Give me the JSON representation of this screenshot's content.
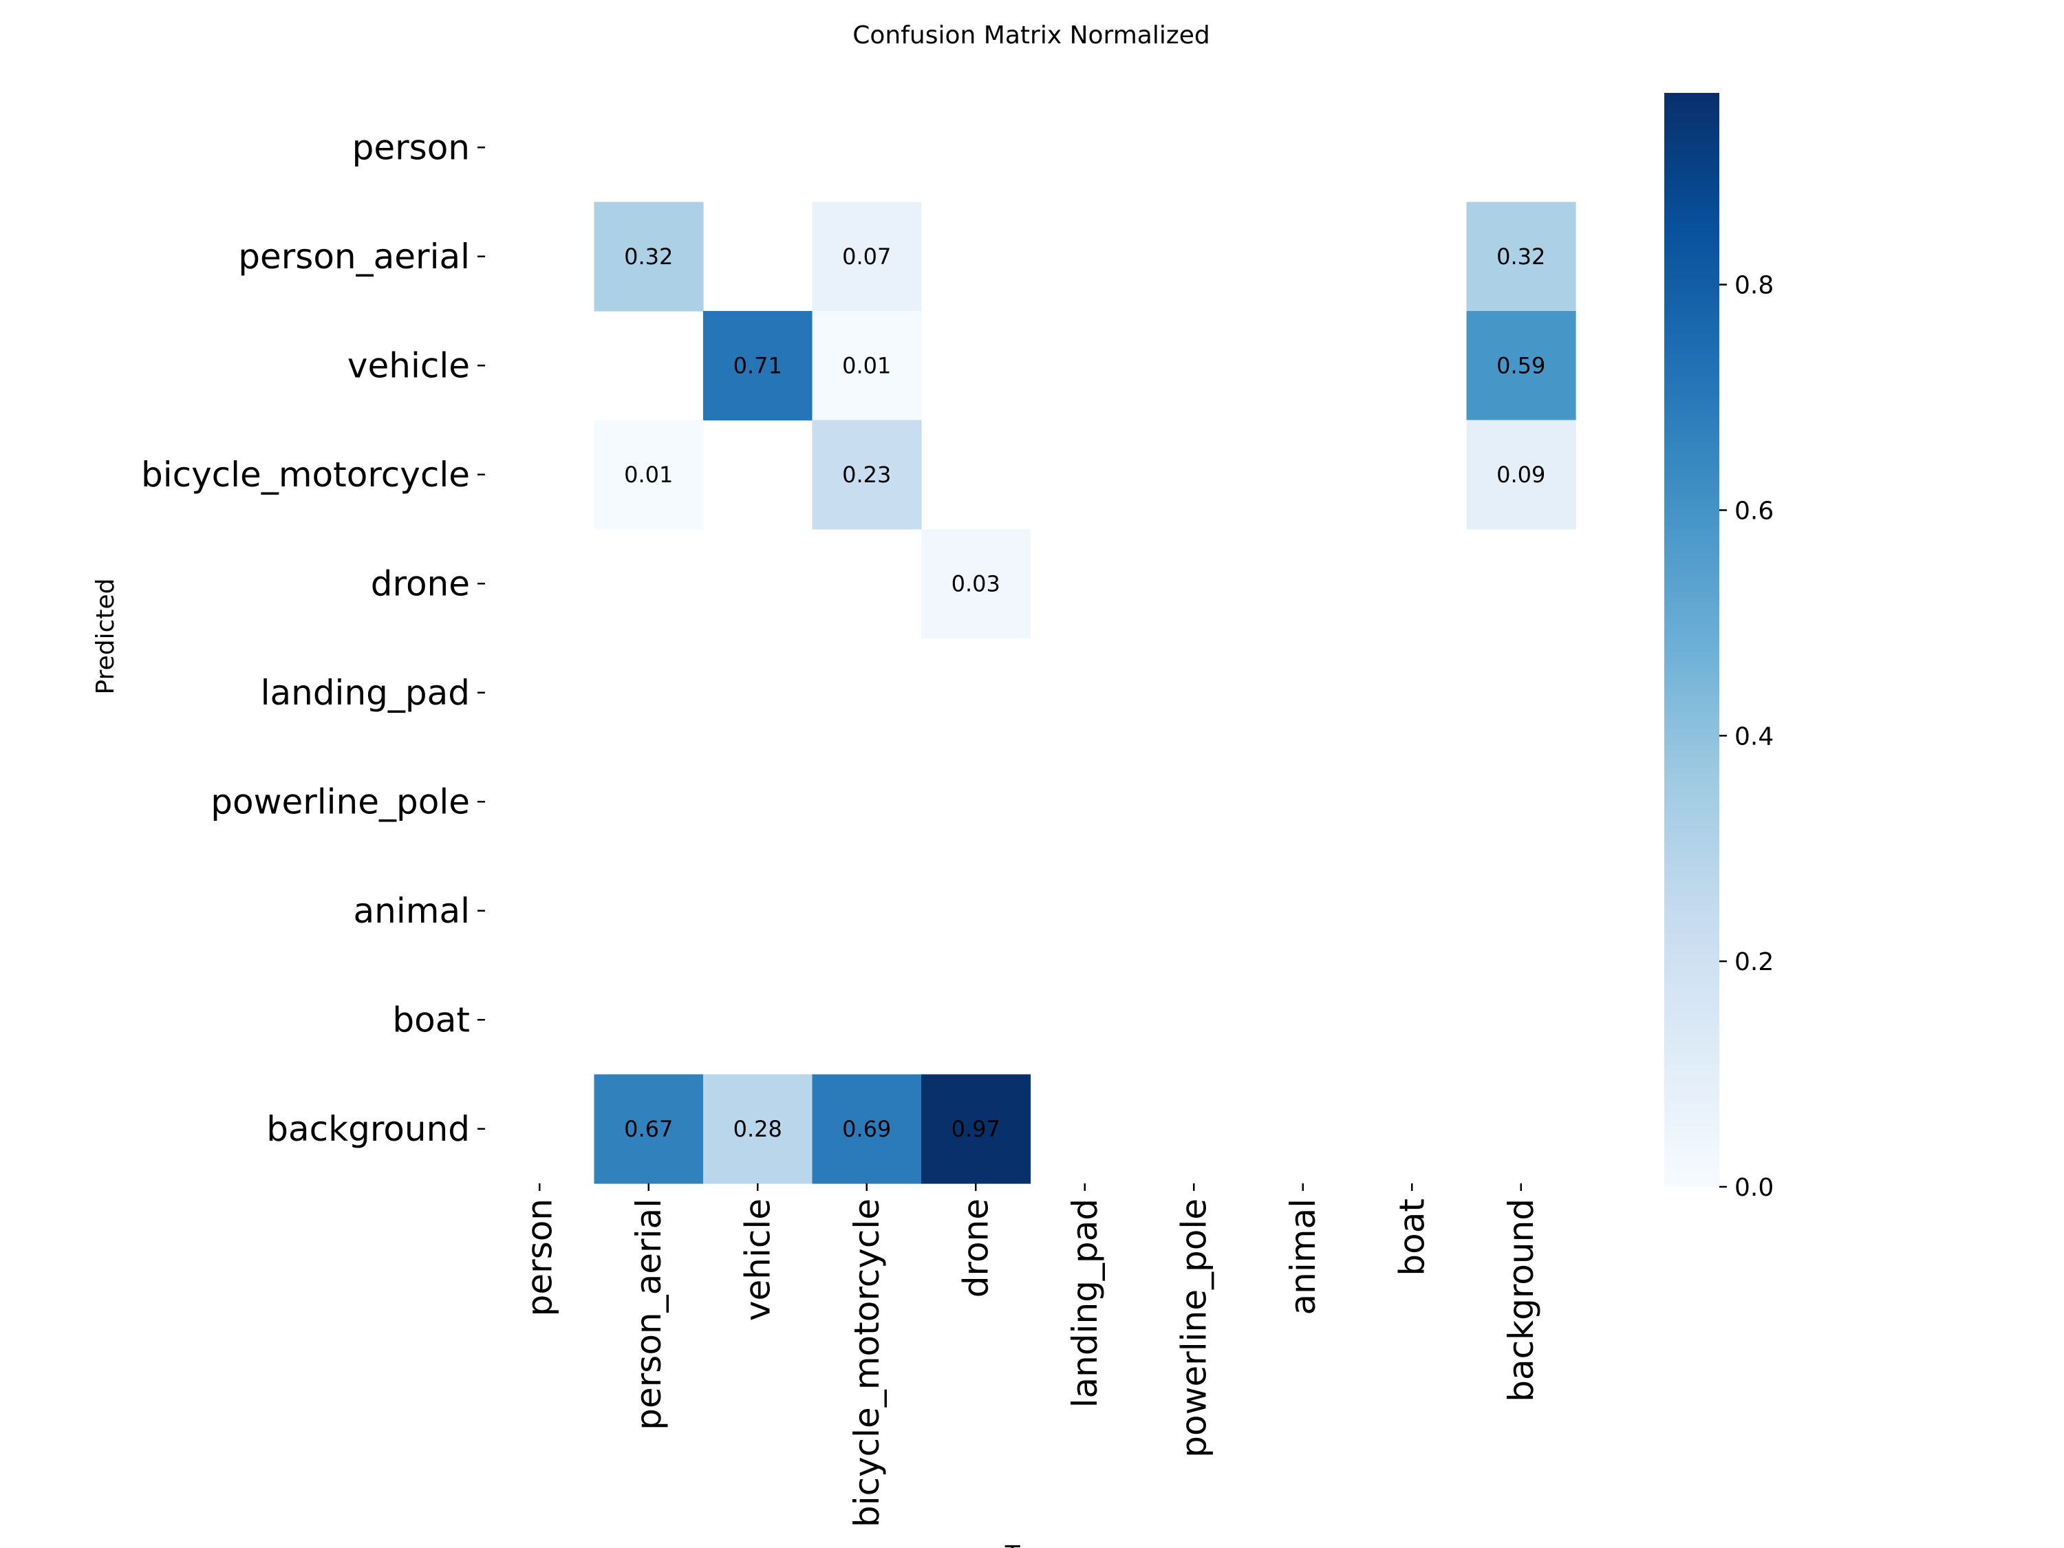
{
  "chart_data": {
    "type": "heatmap",
    "title": "Confusion Matrix Normalized",
    "xlabel": "True",
    "ylabel": "Predicted",
    "x_categories": [
      "person",
      "person_aerial",
      "vehicle",
      "bicycle_motorcycle",
      "drone",
      "landing_pad",
      "powerline_pole",
      "animal",
      "boat",
      "background"
    ],
    "y_categories": [
      "person",
      "person_aerial",
      "vehicle",
      "bicycle_motorcycle",
      "drone",
      "landing_pad",
      "powerline_pole",
      "animal",
      "boat",
      "background"
    ],
    "values": [
      [
        null,
        null,
        null,
        null,
        null,
        null,
        null,
        null,
        null,
        null
      ],
      [
        null,
        0.32,
        null,
        0.07,
        null,
        null,
        null,
        null,
        null,
        0.32
      ],
      [
        null,
        null,
        0.71,
        0.01,
        null,
        null,
        null,
        null,
        null,
        0.59
      ],
      [
        null,
        0.01,
        null,
        0.23,
        null,
        null,
        null,
        null,
        null,
        0.09
      ],
      [
        null,
        null,
        null,
        null,
        0.03,
        null,
        null,
        null,
        null,
        null
      ],
      [
        null,
        null,
        null,
        null,
        null,
        null,
        null,
        null,
        null,
        null
      ],
      [
        null,
        null,
        null,
        null,
        null,
        null,
        null,
        null,
        null,
        null
      ],
      [
        null,
        null,
        null,
        null,
        null,
        null,
        null,
        null,
        null,
        null
      ],
      [
        null,
        null,
        null,
        null,
        null,
        null,
        null,
        null,
        null,
        null
      ],
      [
        null,
        0.67,
        0.28,
        0.69,
        0.97,
        null,
        null,
        null,
        null,
        null
      ]
    ],
    "colorbar": {
      "colormap": "Blues",
      "range": [
        0.0,
        0.97
      ],
      "ticks": [
        "0.0",
        "0.2",
        "0.4",
        "0.6",
        "0.8"
      ]
    }
  }
}
